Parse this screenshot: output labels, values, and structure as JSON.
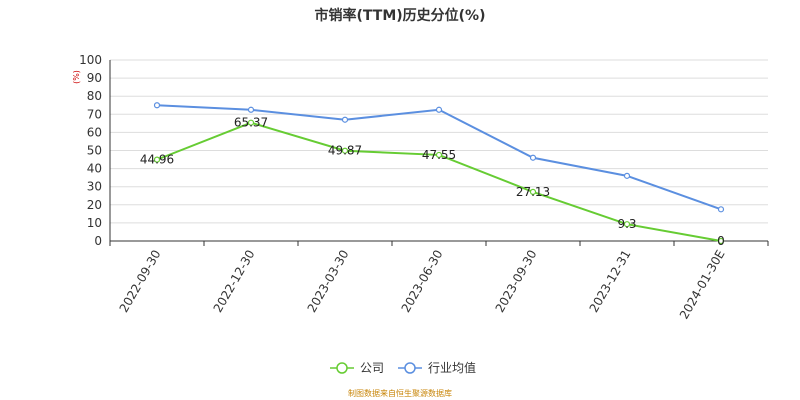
{
  "chart_data": {
    "type": "line",
    "title": "市销率(TTM)历史分位(%)",
    "ylabel": "(%)",
    "xlabel": "",
    "ylim": [
      0,
      100
    ],
    "yticks": [
      0,
      10,
      20,
      30,
      40,
      50,
      60,
      70,
      80,
      90,
      100
    ],
    "categories": [
      "2022-09-30",
      "2022-12-30",
      "2023-03-30",
      "2023-06-30",
      "2023-09-30",
      "2023-12-31",
      "2024-01-30E"
    ],
    "grid": true,
    "legend_position": "bottom",
    "series": [
      {
        "name": "公司",
        "color": "#66cc33",
        "values": [
          44.96,
          65.37,
          49.87,
          47.55,
          27.13,
          9.3,
          0
        ],
        "labels": [
          "44.96",
          "65.37",
          "49.87",
          "47.55",
          "27.13",
          "9.3",
          "0"
        ]
      },
      {
        "name": "行业均值",
        "color": "#5b8fe0",
        "values": [
          75,
          72.5,
          67,
          72.5,
          46,
          36,
          17.5
        ]
      }
    ],
    "source": "制图数据来自恒生聚源数据库"
  }
}
